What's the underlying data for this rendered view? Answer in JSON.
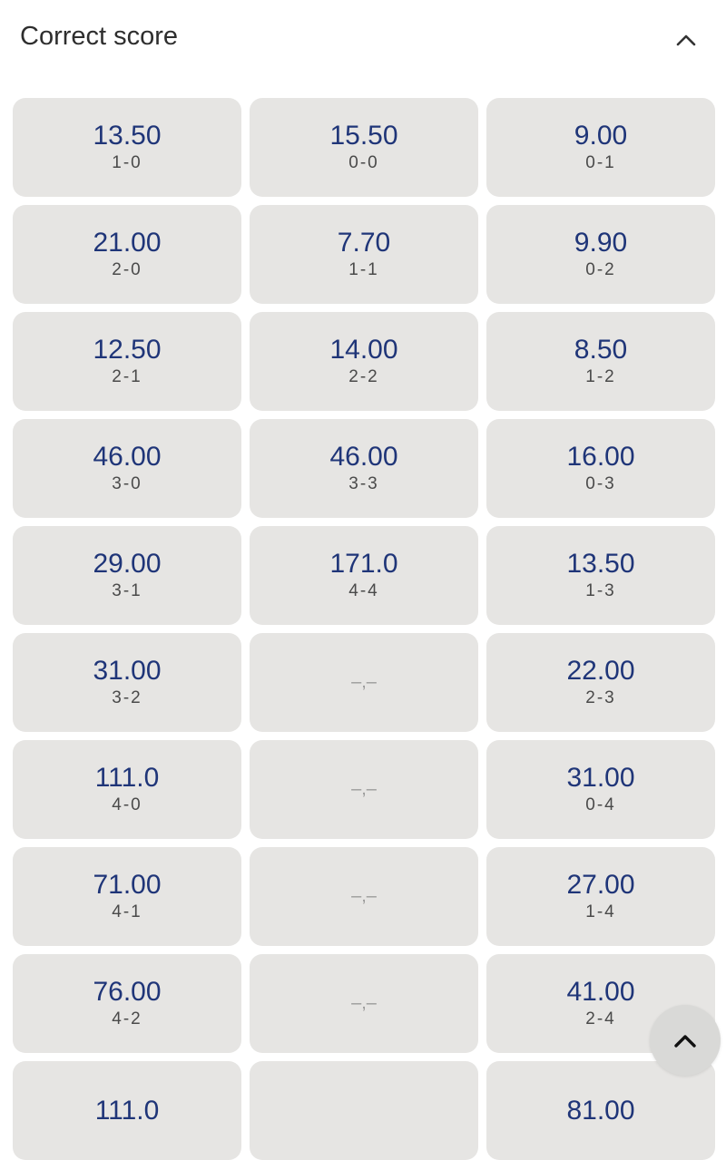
{
  "header": {
    "title": "Correct score",
    "collapse_icon": "chevron-up-icon"
  },
  "colors": {
    "odds": "#1f3578",
    "cell_bg": "#e6e5e3",
    "score": "#4a4a4a"
  },
  "unavailable_label": "–,–",
  "cells": [
    {
      "odds": "13.50",
      "score": "1-0"
    },
    {
      "odds": "15.50",
      "score": "0-0"
    },
    {
      "odds": "9.00",
      "score": "0-1"
    },
    {
      "odds": "21.00",
      "score": "2-0"
    },
    {
      "odds": "7.70",
      "score": "1-1"
    },
    {
      "odds": "9.90",
      "score": "0-2"
    },
    {
      "odds": "12.50",
      "score": "2-1"
    },
    {
      "odds": "14.00",
      "score": "2-2"
    },
    {
      "odds": "8.50",
      "score": "1-2"
    },
    {
      "odds": "46.00",
      "score": "3-0"
    },
    {
      "odds": "46.00",
      "score": "3-3"
    },
    {
      "odds": "16.00",
      "score": "0-3"
    },
    {
      "odds": "29.00",
      "score": "3-1"
    },
    {
      "odds": "171.0",
      "score": "4-4"
    },
    {
      "odds": "13.50",
      "score": "1-3"
    },
    {
      "odds": "31.00",
      "score": "3-2"
    },
    {
      "unavailable": true
    },
    {
      "odds": "22.00",
      "score": "2-3"
    },
    {
      "odds": "111.0",
      "score": "4-0"
    },
    {
      "unavailable": true
    },
    {
      "odds": "31.00",
      "score": "0-4"
    },
    {
      "odds": "71.00",
      "score": "4-1"
    },
    {
      "unavailable": true
    },
    {
      "odds": "27.00",
      "score": "1-4"
    },
    {
      "odds": "76.00",
      "score": "4-2"
    },
    {
      "unavailable": true
    },
    {
      "odds": "41.00",
      "score": "2-4"
    },
    {
      "odds": "111.0"
    },
    {},
    {
      "odds": "81.00"
    }
  ],
  "scroll_top_icon": "chevron-up-icon"
}
